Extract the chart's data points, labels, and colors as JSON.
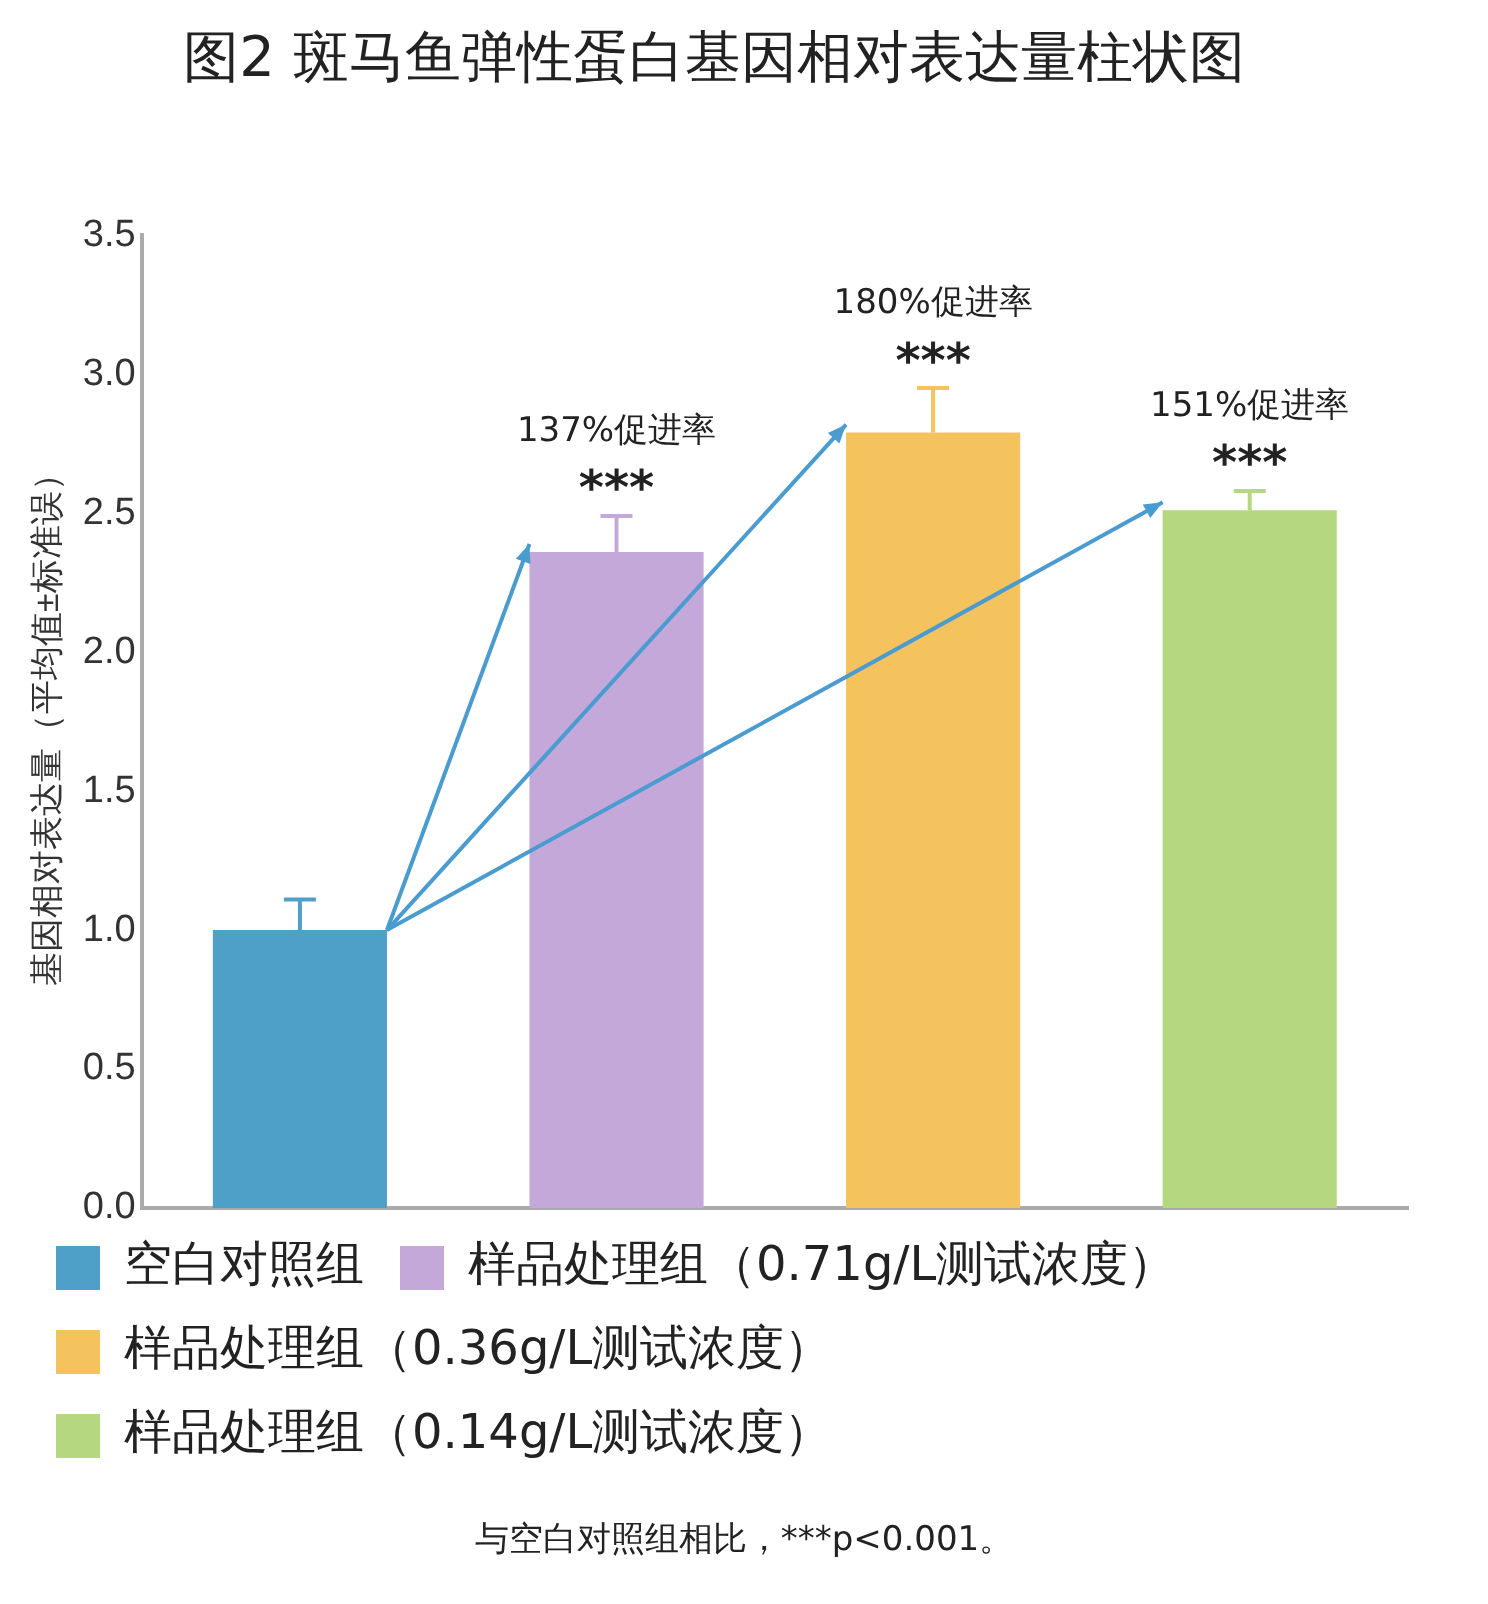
{
  "chart_data": {
    "type": "bar",
    "title": "图2 斑马鱼弹性蛋白基因相对表达量柱状图",
    "ylabel": "基因相对表达量（平均值±标准误）",
    "categories": [
      null,
      null,
      null,
      null
    ],
    "series": [
      {
        "name": "空白对照组",
        "color": "#4fa0c8",
        "values": [
          1.0,
          null,
          null,
          null
        ],
        "errors": [
          0.11,
          null,
          null,
          null
        ]
      },
      {
        "name": "样品处理组（0.71g/L测试浓度）",
        "color": "#c3a8d9",
        "values": [
          null,
          2.36,
          null,
          null
        ],
        "errors": [
          null,
          0.13,
          null,
          null
        ]
      },
      {
        "name": "样品处理组（0.36g/L测试浓度）",
        "color": "#f5c35e",
        "values": [
          null,
          null,
          2.79,
          null
        ],
        "errors": [
          null,
          null,
          0.16,
          null
        ]
      },
      {
        "name": "样品处理组（0.14g/L测试浓度）",
        "color": "#b5d77f",
        "values": [
          null,
          null,
          null,
          2.51
        ],
        "errors": [
          null,
          null,
          null,
          0.07
        ]
      }
    ],
    "ylim": [
      0,
      3.5
    ],
    "yticks": [
      {
        "value": 0,
        "label": "0.0"
      },
      {
        "value": 0.5,
        "label": "0.5"
      },
      {
        "value": 1,
        "label": "1.0"
      },
      {
        "value": 1.5,
        "label": "1.5"
      },
      {
        "value": 2,
        "label": "2.0"
      },
      {
        "value": 2.5,
        "label": "2.5"
      },
      {
        "value": 3,
        "label": "3.0"
      },
      {
        "value": 3.5,
        "label": "3.5"
      }
    ],
    "grid": false,
    "legend": "bottom",
    "annotations": [
      "137%促进率",
      "***",
      "180%促进率",
      "***",
      "151%促进率",
      "***",
      "与空白对照组相比，***p<0.001。"
    ]
  }
}
